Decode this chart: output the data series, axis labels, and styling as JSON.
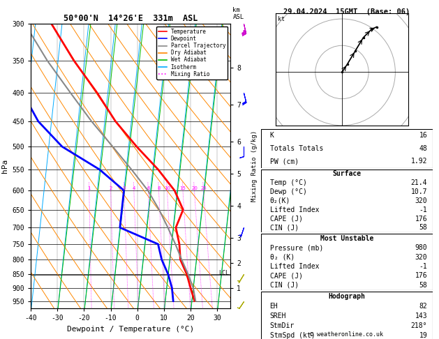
{
  "title_left": "50°00'N  14°26'E  331m  ASL",
  "title_right": "29.04.2024  15GMT  (Base: 06)",
  "xlabel": "Dewpoint / Temperature (°C)",
  "ylabel_left": "hPa",
  "xlim": [
    -40,
    35
  ],
  "p_ticks": [
    300,
    350,
    400,
    450,
    500,
    550,
    600,
    650,
    700,
    750,
    800,
    850,
    900,
    950
  ],
  "temp_color": "#ff0000",
  "dewp_color": "#0000ff",
  "parcel_color": "#888888",
  "dry_adiabat_color": "#ff8800",
  "wet_adiabat_color": "#00bb00",
  "isotherm_color": "#00aaff",
  "mixing_ratio_color": "#ff00ff",
  "legend_labels": [
    "Temperature",
    "Dewpoint",
    "Parcel Trajectory",
    "Dry Adiabat",
    "Wet Adiabat",
    "Isotherm",
    "Mixing Ratio"
  ],
  "legend_colors": [
    "#ff0000",
    "#0000ff",
    "#888888",
    "#ff8800",
    "#00bb00",
    "#00aaff",
    "#ff00ff"
  ],
  "legend_styles": [
    "-",
    "-",
    "-",
    "-",
    "-",
    "-",
    ":"
  ],
  "temp_data": [
    [
      950,
      21.0
    ],
    [
      900,
      19.0
    ],
    [
      850,
      17.0
    ],
    [
      800,
      14.0
    ],
    [
      750,
      13.0
    ],
    [
      700,
      11.0
    ],
    [
      650,
      13.0
    ],
    [
      600,
      9.0
    ],
    [
      550,
      2.0
    ],
    [
      500,
      -7.0
    ],
    [
      450,
      -16.0
    ],
    [
      400,
      -24.0
    ],
    [
      350,
      -34.0
    ],
    [
      300,
      -44.0
    ]
  ],
  "dewp_data": [
    [
      950,
      13.0
    ],
    [
      900,
      12.0
    ],
    [
      850,
      10.0
    ],
    [
      800,
      7.0
    ],
    [
      750,
      5.0
    ],
    [
      700,
      -10.0
    ],
    [
      650,
      -10.0
    ],
    [
      600,
      -10.0
    ],
    [
      550,
      -20.0
    ],
    [
      500,
      -35.0
    ],
    [
      450,
      -45.0
    ],
    [
      400,
      -52.0
    ],
    [
      350,
      -55.0
    ],
    [
      300,
      -58.0
    ]
  ],
  "parcel_data": [
    [
      950,
      21.4
    ],
    [
      900,
      20.0
    ],
    [
      850,
      17.5
    ],
    [
      800,
      14.5
    ],
    [
      750,
      11.5
    ],
    [
      700,
      8.0
    ],
    [
      650,
      4.0
    ],
    [
      600,
      -1.0
    ],
    [
      550,
      -8.0
    ],
    [
      500,
      -16.0
    ],
    [
      450,
      -25.0
    ],
    [
      400,
      -34.0
    ],
    [
      350,
      -44.0
    ],
    [
      300,
      -54.0
    ]
  ],
  "km_ticks": [
    1,
    2,
    3,
    4,
    5,
    6,
    7,
    8
  ],
  "km_pressures": [
    900,
    810,
    730,
    640,
    560,
    490,
    420,
    360
  ],
  "lcl_pressure": 853,
  "wind_data": [
    {
      "pressure": 300,
      "u": -8,
      "v": 35,
      "color": "#cc00cc"
    },
    {
      "pressure": 400,
      "u": -5,
      "v": 20,
      "color": "#0000ff"
    },
    {
      "pressure": 500,
      "u": 0,
      "v": 12,
      "color": "#0000ff"
    },
    {
      "pressure": 700,
      "u": 2,
      "v": 6,
      "color": "#0000ff"
    },
    {
      "pressure": 850,
      "u": 3,
      "v": 5,
      "color": "#aaaa00"
    },
    {
      "pressure": 950,
      "u": 2,
      "v": 3,
      "color": "#aaaa00"
    }
  ],
  "stats": {
    "K": 16,
    "Totals Totals": 48,
    "PW (cm)": 1.92,
    "Surf_Temp": 21.4,
    "Surf_Dewp": 10.7,
    "Surf_thetae": 320,
    "Surf_LI": -1,
    "Surf_CAPE": 176,
    "Surf_CIN": 58,
    "MU_P": 980,
    "MU_thetae": 320,
    "MU_LI": -1,
    "MU_CAPE": 176,
    "MU_CIN": 58,
    "EH": 82,
    "SREH": 143,
    "StmDir": 218,
    "StmSpd": 19
  },
  "hodo_points": [
    [
      0,
      0
    ],
    [
      2,
      3
    ],
    [
      5,
      8
    ],
    [
      8,
      13
    ],
    [
      11,
      16
    ],
    [
      13,
      17
    ]
  ]
}
